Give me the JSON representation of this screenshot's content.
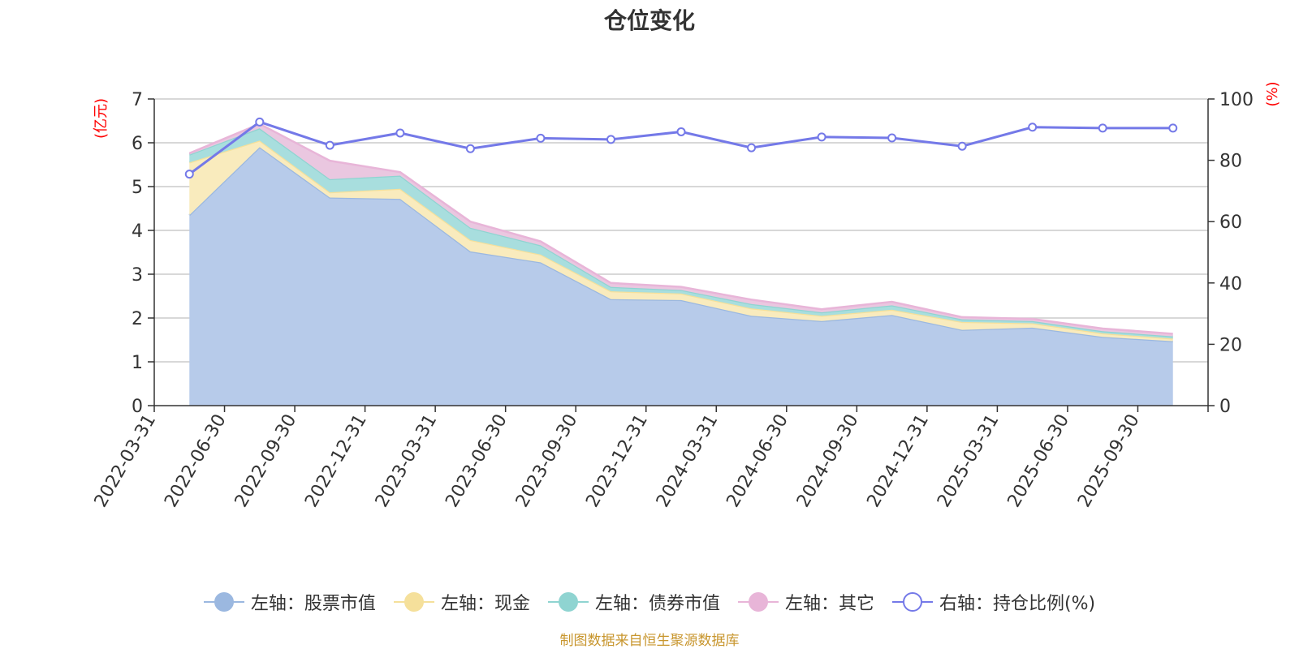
{
  "chart_data": {
    "type": "area",
    "title": "仓位变化",
    "categories": [
      "2022-03-31",
      "2022-06-30",
      "2022-09-30",
      "2022-12-31",
      "2023-03-31",
      "2023-06-30",
      "2023-09-30",
      "2023-12-31",
      "2024-03-31",
      "2024-06-30",
      "2024-09-30",
      "2024-12-31",
      "2025-03-31",
      "2025-06-30",
      "2025-09-30"
    ],
    "series": [
      {
        "name": "左轴：股票市值",
        "axis": "left",
        "kind": "stacked-area",
        "color": "#9bb8e0",
        "fill": "#b7cbea",
        "values": [
          4.35,
          5.9,
          4.75,
          4.72,
          3.52,
          3.27,
          2.43,
          2.41,
          2.05,
          1.93,
          2.07,
          1.73,
          1.78,
          1.57,
          1.47
        ]
      },
      {
        "name": "左轴：现金",
        "axis": "left",
        "kind": "stacked-area",
        "color": "#f5e09b",
        "fill": "#f9ebbd",
        "values": [
          1.2,
          0.15,
          0.12,
          0.23,
          0.26,
          0.18,
          0.18,
          0.15,
          0.17,
          0.12,
          0.12,
          0.18,
          0.1,
          0.08,
          0.06
        ]
      },
      {
        "name": "左轴：债券市值",
        "axis": "left",
        "kind": "stacked-area",
        "color": "#8fd4d1",
        "fill": "#a8dede",
        "values": [
          0.18,
          0.28,
          0.3,
          0.3,
          0.28,
          0.21,
          0.1,
          0.08,
          0.1,
          0.08,
          0.1,
          0.06,
          0.05,
          0.05,
          0.05
        ]
      },
      {
        "name": "左轴：其它",
        "axis": "left",
        "kind": "stacked-area",
        "color": "#e8b5d8",
        "fill": "#eac7e0",
        "values": [
          0.03,
          0.1,
          0.42,
          0.08,
          0.14,
          0.09,
          0.09,
          0.07,
          0.1,
          0.07,
          0.08,
          0.05,
          0.05,
          0.06,
          0.06
        ]
      },
      {
        "name": "右轴：持仓比例(%)",
        "axis": "right",
        "kind": "line",
        "color": "#7479e8",
        "values": [
          75.5,
          92.5,
          84.9,
          88.9,
          83.8,
          87.2,
          86.8,
          89.3,
          84.1,
          87.6,
          87.3,
          84.6,
          90.8,
          90.5,
          90.5
        ]
      }
    ],
    "yleft": {
      "label": "(亿元)",
      "ylim": [
        0,
        7
      ],
      "ticks": [
        0,
        1,
        2,
        3,
        4,
        5,
        6,
        7
      ]
    },
    "yright": {
      "label": "(%)",
      "ylim": [
        0,
        100
      ],
      "ticks": [
        0,
        20,
        40,
        60,
        80,
        100
      ]
    },
    "grid": true,
    "legend_position": "bottom"
  },
  "footer": "制图数据来自恒生聚源数据库"
}
